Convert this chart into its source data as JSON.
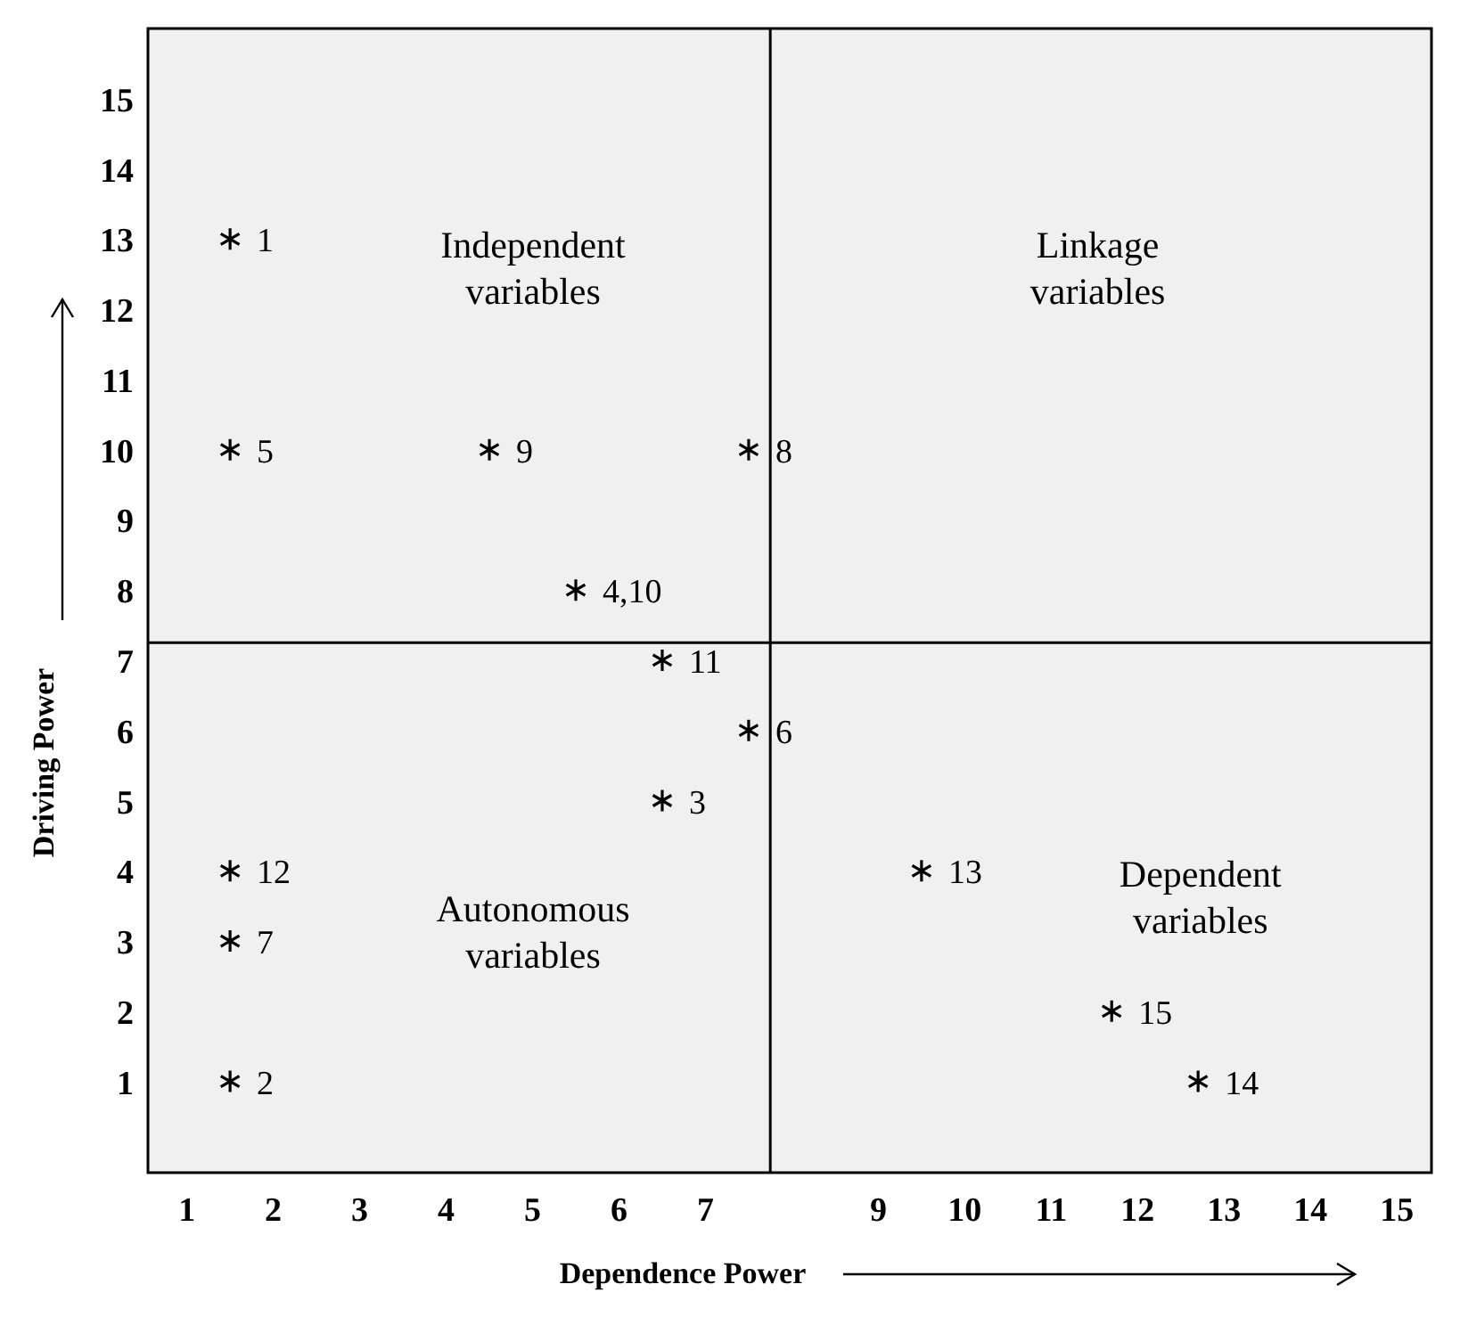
{
  "chart_data": {
    "type": "scatter",
    "xlabel": "Dependence Power",
    "ylabel": "Driving Power",
    "xlim": [
      0.55,
      15.4
    ],
    "ylim": [
      -0.3,
      16
    ],
    "xticks": [
      1,
      2,
      3,
      4,
      5,
      6,
      7,
      9,
      10,
      11,
      12,
      13,
      14,
      15
    ],
    "yticks": [
      1,
      2,
      3,
      4,
      5,
      6,
      7,
      8,
      9,
      10,
      11,
      12,
      13,
      14,
      15
    ],
    "grid": false,
    "marker": "cross",
    "series": [
      {
        "color": "#000000",
        "x": [
          1.5,
          1.5,
          4.5,
          7.5,
          5.5,
          6.5,
          7.5,
          6.5,
          1.5,
          1.5,
          1.5,
          9.5,
          11.7,
          12.7
        ],
        "values": [
          13,
          10,
          10,
          10,
          8,
          7,
          6,
          5,
          4,
          3,
          1,
          4,
          2,
          1
        ]
      }
    ],
    "ref_lines": [
      {
        "axis": "x",
        "value": 7.75,
        "color": "#000000"
      },
      {
        "axis": "y",
        "value": 7.25,
        "color": "#000000"
      }
    ],
    "annotations": [
      "Independent variables",
      "Linkage variables",
      "Autonomous variables",
      "Dependent variables",
      {
        "text": "1",
        "x": 1.5,
        "y": 13
      },
      {
        "text": "5",
        "x": 1.5,
        "y": 10
      },
      {
        "text": "9",
        "x": 4.5,
        "y": 10
      },
      {
        "text": "8",
        "x": 7.5,
        "y": 10
      },
      {
        "text": "4,10",
        "x": 5.5,
        "y": 8
      },
      {
        "text": "11",
        "x": 6.5,
        "y": 7
      },
      {
        "text": "6",
        "x": 7.5,
        "y": 6
      },
      {
        "text": "3",
        "x": 6.5,
        "y": 5
      },
      {
        "text": "12",
        "x": 1.5,
        "y": 4
      },
      {
        "text": "7",
        "x": 1.5,
        "y": 3
      },
      {
        "text": "2",
        "x": 1.5,
        "y": 1
      },
      {
        "text": "13",
        "x": 9.5,
        "y": 4
      },
      {
        "text": "15",
        "x": 11.7,
        "y": 2
      },
      {
        "text": "14",
        "x": 12.7,
        "y": 1
      }
    ]
  }
}
